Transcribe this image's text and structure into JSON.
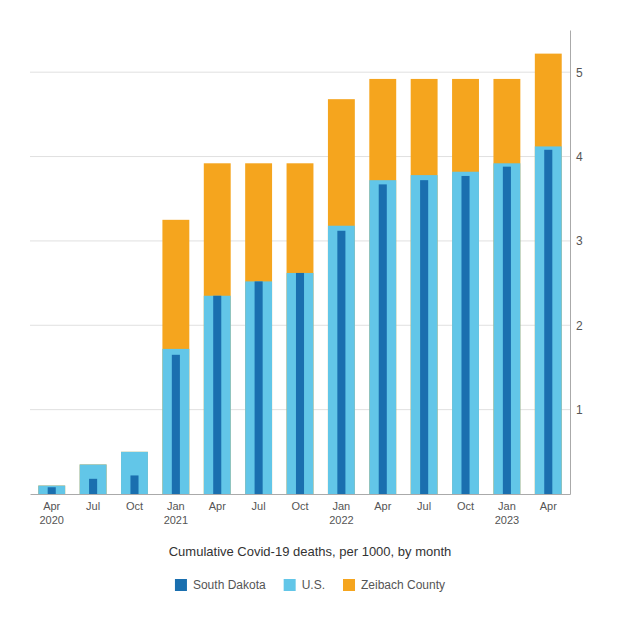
{
  "chart_data": {
    "type": "bar",
    "title": "Cumulative Covid-19 deaths, per 1000, by month",
    "categories": [
      "Apr\n2020",
      "Jul",
      "Oct",
      "Jan\n2021",
      "Apr",
      "Jul",
      "Oct",
      "Jan\n2022",
      "Apr",
      "Jul",
      "Oct",
      "Jan\n2023",
      "Apr"
    ],
    "series": [
      {
        "name": "South Dakota",
        "color": "#1a6faf",
        "values": [
          0.08,
          0.18,
          0.22,
          1.65,
          2.35,
          2.52,
          2.62,
          3.12,
          3.67,
          3.72,
          3.77,
          3.88,
          4.08
        ]
      },
      {
        "name": "U.S.",
        "color": "#62c6e8",
        "values": [
          0.1,
          0.35,
          0.5,
          1.72,
          2.35,
          2.52,
          2.62,
          3.18,
          3.72,
          3.78,
          3.82,
          3.92,
          4.12
        ]
      },
      {
        "name": "Zeibach County",
        "color": "#f5a51e",
        "values": [
          0.1,
          0.35,
          0.5,
          3.25,
          3.92,
          3.92,
          3.92,
          4.68,
          4.92,
          4.92,
          4.92,
          4.92,
          5.22
        ]
      }
    ],
    "ylim": [
      0,
      5.5
    ],
    "yticks": [
      1,
      2,
      3,
      4,
      5
    ],
    "grid": true,
    "legend": "bottom"
  }
}
